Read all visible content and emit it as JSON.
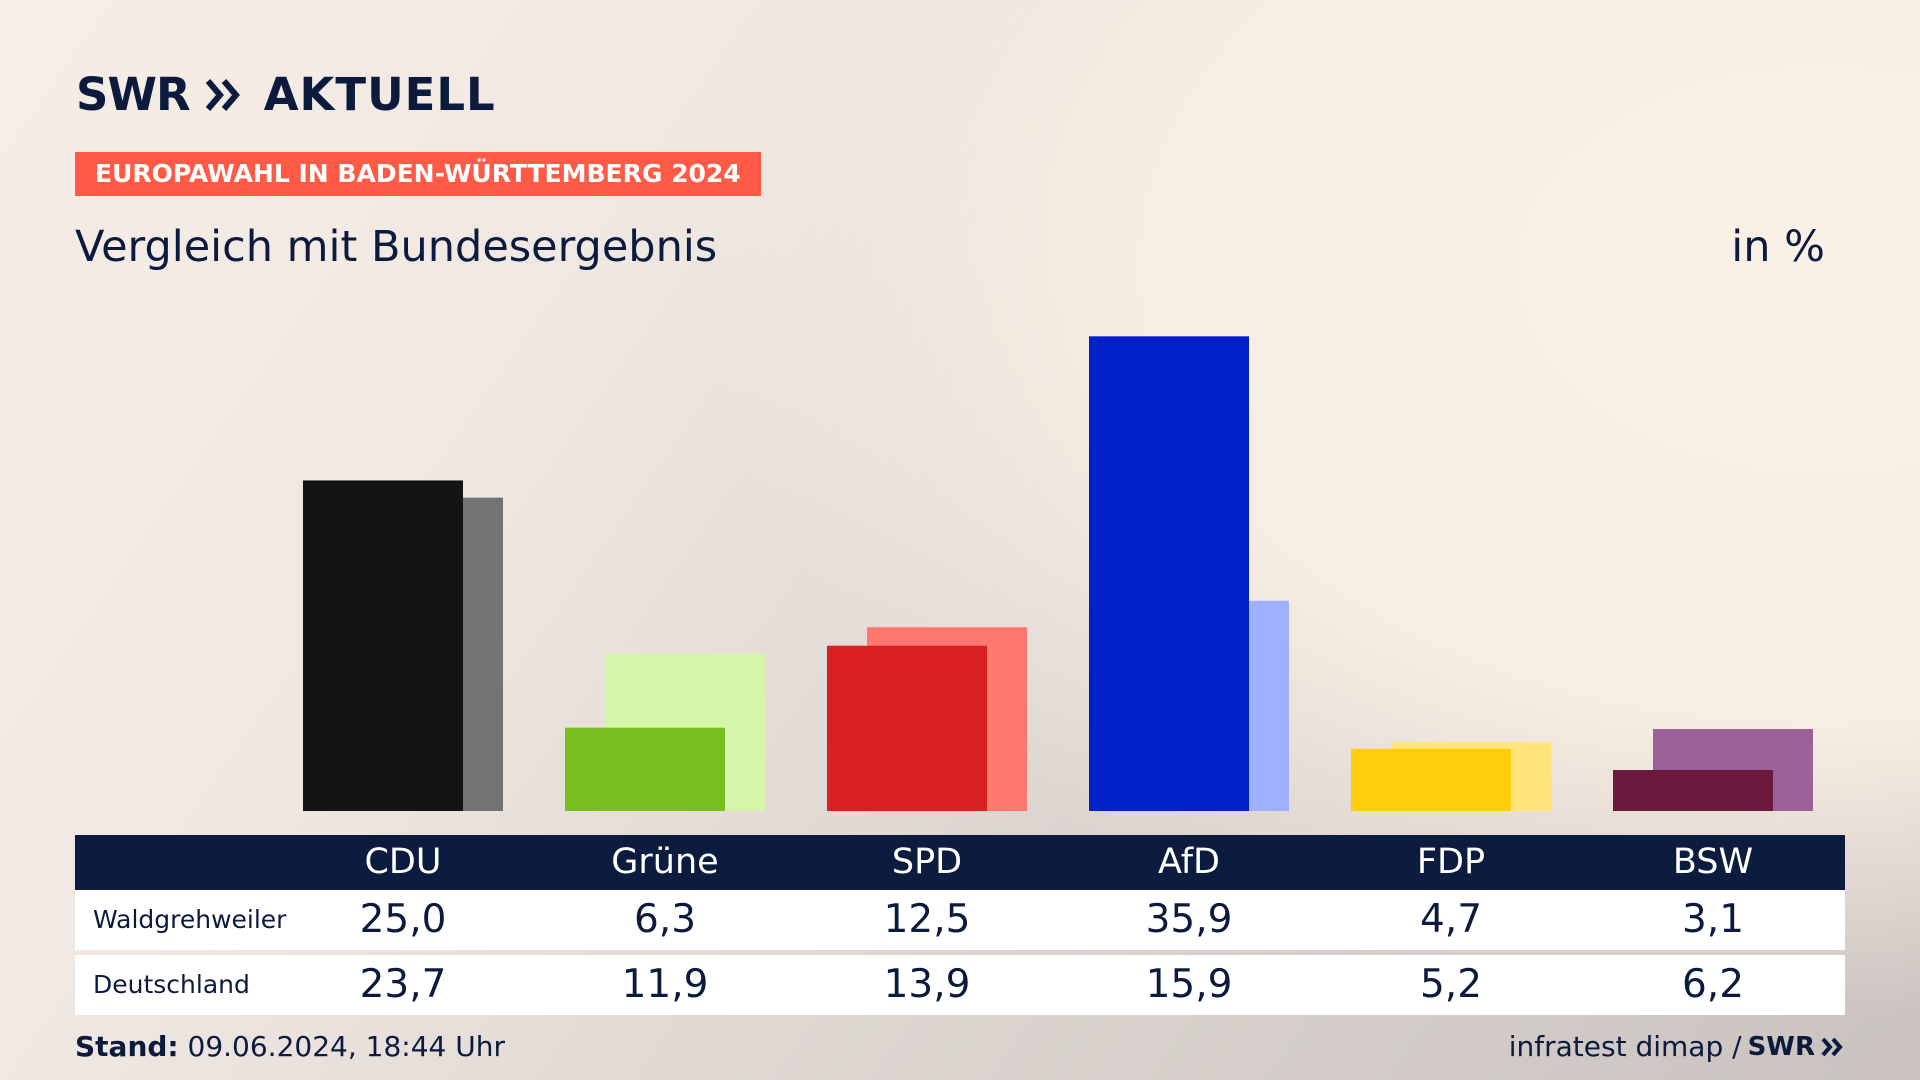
{
  "brand": {
    "swr": "SWR",
    "aktuell": "AKTUELL"
  },
  "kicker": "EUROPAWAHL IN BADEN-WÜRTTEMBERG 2024",
  "title": "Vergleich mit Bundesergebnis",
  "unit": "in %",
  "footer": {
    "stand_label": "Stand:",
    "stand_value": " 09.06.2024, 18:44 Uhr",
    "source": "infratest dimap /",
    "source_brand": "SWR"
  },
  "chart_data": {
    "type": "bar",
    "categories": [
      "CDU",
      "Grüne",
      "SPD",
      "AfD",
      "FDP",
      "BSW"
    ],
    "series": [
      {
        "name": "Waldgrehweiler",
        "values": [
          25.0,
          6.3,
          12.5,
          35.9,
          4.7,
          3.1
        ],
        "display": [
          "25,0",
          "6,3",
          "12,5",
          "35,9",
          "4,7",
          "3,1"
        ],
        "colors": [
          "#141414",
          "#78be1e",
          "#d7201f",
          "#0020c8",
          "#ffcd0a",
          "#6b1a3e"
        ]
      },
      {
        "name": "Deutschland",
        "values": [
          23.7,
          11.9,
          13.9,
          15.9,
          5.2,
          6.2
        ],
        "display": [
          "23,7",
          "11,9",
          "13,9",
          "15,9",
          "5,2",
          "6,2"
        ],
        "colors": [
          "#737373",
          "#d6f5a8",
          "#ff7870",
          "#9fb0ff",
          "#ffe57a",
          "#9b6199"
        ]
      }
    ],
    "ylim": [
      0,
      36
    ]
  }
}
